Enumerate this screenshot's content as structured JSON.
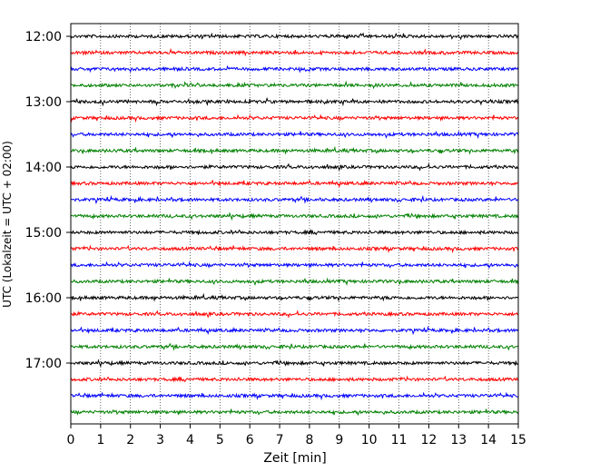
{
  "chart_data": {
    "type": "line",
    "title": "",
    "xlabel": "Zeit  [min]",
    "ylabel": "UTC (Lokalzeit = UTC + 02:00)",
    "xlim": [
      0,
      15
    ],
    "x_ticks": [
      "0",
      "1",
      "2",
      "3",
      "4",
      "5",
      "6",
      "7",
      "8",
      "9",
      "10",
      "11",
      "12",
      "13",
      "14",
      "15"
    ],
    "y_ticks": [
      "12:00",
      "13:00",
      "14:00",
      "15:00",
      "16:00",
      "17:00"
    ],
    "trace_interval_min": 15,
    "trace_start": "12:00",
    "trace_count": 24,
    "trace_colors": [
      "#000000",
      "#ff0000",
      "#0000ff",
      "#008000"
    ],
    "grid": "vertical dotted at each minute",
    "signal": "seismogram noise, small amplitude"
  }
}
